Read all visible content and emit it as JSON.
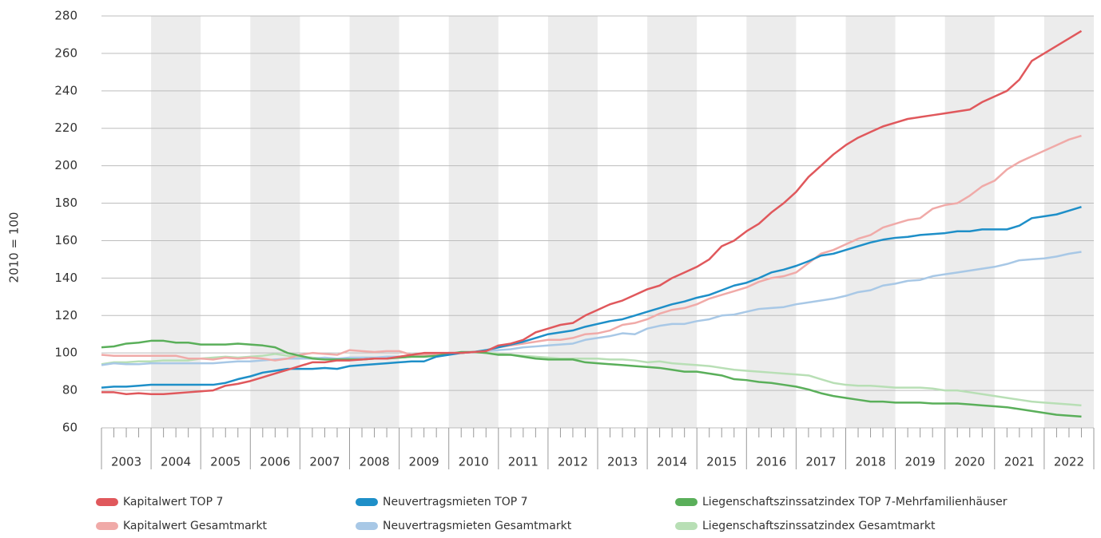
{
  "chart_data": {
    "type": "line",
    "y_label": "2010 = 100",
    "x": [
      2003,
      2003.25,
      2003.5,
      2003.75,
      2004,
      2004.25,
      2004.5,
      2004.75,
      2005,
      2005.25,
      2005.5,
      2005.75,
      2006,
      2006.25,
      2006.5,
      2006.75,
      2007,
      2007.25,
      2007.5,
      2007.75,
      2008,
      2008.25,
      2008.5,
      2008.75,
      2009,
      2009.25,
      2009.5,
      2009.75,
      2010,
      2010.25,
      2010.5,
      2010.75,
      2011,
      2011.25,
      2011.5,
      2011.75,
      2012,
      2012.25,
      2012.5,
      2012.75,
      2013,
      2013.25,
      2013.5,
      2013.75,
      2014,
      2014.25,
      2014.5,
      2014.75,
      2015,
      2015.25,
      2015.5,
      2015.75,
      2016,
      2016.25,
      2016.5,
      2016.75,
      2017,
      2017.25,
      2017.5,
      2017.75,
      2018,
      2018.25,
      2018.5,
      2018.75,
      2019,
      2019.25,
      2019.5,
      2019.75,
      2020,
      2020.25,
      2020.5,
      2020.75,
      2021,
      2021.25,
      2021.5,
      2021.75,
      2022,
      2022.25,
      2022.5,
      2022.75
    ],
    "xlim": [
      2003,
      2023
    ],
    "xticks": [
      2003,
      2004,
      2005,
      2006,
      2007,
      2008,
      2009,
      2010,
      2011,
      2012,
      2013,
      2014,
      2015,
      2016,
      2017,
      2018,
      2019,
      2020,
      2021,
      2022
    ],
    "ylim": [
      60,
      280
    ],
    "yticks": [
      60,
      80,
      100,
      120,
      140,
      160,
      180,
      200,
      220,
      240,
      260,
      280
    ],
    "grid": true,
    "series": [
      {
        "name": "Kapitalwert TOP 7",
        "color": "#e0585c",
        "values": [
          79,
          79,
          78,
          78.5,
          78,
          78,
          78.5,
          79,
          79.5,
          80,
          82.5,
          83.5,
          85,
          87,
          89,
          91,
          93,
          95,
          95,
          96,
          96,
          96.5,
          97,
          97,
          98,
          99,
          100,
          100,
          100,
          100,
          100.5,
          101,
          104,
          105,
          107,
          111,
          113,
          115,
          116,
          120,
          123,
          126,
          128,
          131,
          134,
          136,
          140,
          143,
          146,
          150,
          157,
          160,
          165,
          169,
          175,
          180,
          186,
          194,
          200,
          206,
          211,
          215,
          218,
          221,
          223,
          225,
          226,
          227,
          228,
          229,
          230,
          234,
          237,
          240,
          246,
          256,
          260,
          264,
          268,
          272
        ]
      },
      {
        "name": "Kapitalwert Gesamtmarkt",
        "color": "#f0aaa8",
        "values": [
          99,
          98.5,
          98.5,
          98.5,
          98.5,
          98.5,
          98.5,
          97,
          97,
          96.5,
          97.5,
          97,
          97.5,
          97,
          96,
          97,
          99,
          100,
          99.5,
          99,
          101.5,
          101,
          100.5,
          101,
          101,
          99,
          99,
          99.5,
          100,
          100,
          100.5,
          101,
          103,
          104,
          105,
          106,
          107,
          107,
          108,
          110,
          110.5,
          112,
          115,
          116,
          118,
          121,
          123,
          124,
          126,
          129,
          131,
          133,
          135,
          138,
          140,
          141,
          143,
          148,
          153,
          155,
          158,
          161,
          163,
          167,
          169,
          171,
          172,
          177,
          179,
          180,
          184,
          189,
          192,
          198,
          202,
          205,
          208,
          211,
          214,
          216
        ]
      },
      {
        "name": "Neuvertragsmieten TOP 7",
        "color": "#1e8fc8",
        "values": [
          81.5,
          82,
          82,
          82.5,
          83,
          83,
          83,
          83,
          83,
          83,
          84,
          86,
          87.5,
          89.5,
          90.5,
          91.5,
          91.5,
          91.5,
          92,
          91.5,
          93,
          93.5,
          94,
          94.5,
          95,
          95.5,
          95.5,
          98,
          99,
          100,
          100.5,
          101.5,
          103,
          104.5,
          106,
          108,
          110,
          111,
          112,
          114,
          115.5,
          117,
          118,
          120,
          122,
          124,
          126,
          127.5,
          129.5,
          131,
          133.5,
          136,
          137.5,
          140,
          143,
          144.5,
          146.5,
          149,
          152,
          153,
          155,
          157,
          159,
          160.5,
          161.5,
          162,
          163,
          163.5,
          164,
          165,
          165,
          166,
          166,
          166,
          168,
          172,
          173,
          174,
          176,
          178
        ]
      },
      {
        "name": "Neuvertragsmieten Gesamtmarkt",
        "color": "#a8c8e6",
        "values": [
          93.5,
          94.5,
          94,
          94,
          94.5,
          94.5,
          94.5,
          94.5,
          94.5,
          94.5,
          95,
          95.5,
          95.5,
          96,
          96.5,
          97,
          97,
          97,
          97.5,
          97,
          97.5,
          97.5,
          97.5,
          98,
          98,
          98.5,
          99,
          99.5,
          100,
          100,
          100.5,
          101,
          101.5,
          102,
          103,
          103.5,
          104,
          104.5,
          105,
          107,
          108,
          109,
          110.5,
          110,
          113,
          114.5,
          115.5,
          115.5,
          117,
          118,
          120,
          120.5,
          122,
          123.5,
          124,
          124.5,
          126,
          127,
          128,
          129,
          130.5,
          132.5,
          133.5,
          136,
          137,
          138.5,
          139,
          141,
          142,
          143,
          144,
          145,
          146,
          147.5,
          149.5,
          150,
          150.5,
          151.5,
          153,
          154
        ]
      },
      {
        "name": "Liegenschaftszinssatzindex TOP 7-Mehrfamilienhäuser",
        "color": "#5aaf5a",
        "values": [
          103,
          103.5,
          105,
          105.5,
          106.5,
          106.5,
          105.5,
          105.5,
          104.5,
          104.5,
          104.5,
          105,
          104.5,
          104,
          103,
          100,
          98.5,
          97,
          96.5,
          96.5,
          96.5,
          96.5,
          97,
          97,
          97.5,
          98,
          98,
          98.5,
          99.5,
          100.5,
          100.5,
          100,
          99,
          99,
          98,
          97,
          96.5,
          96.5,
          96.5,
          95,
          94.5,
          94,
          93.5,
          93,
          92.5,
          92,
          91,
          90,
          90,
          89,
          88,
          86,
          85.5,
          84.5,
          84,
          83,
          82,
          80.5,
          78.5,
          77,
          76,
          75,
          74,
          74,
          73.5,
          73.5,
          73.5,
          73,
          73,
          73,
          72.5,
          72,
          71.5,
          71,
          70,
          69,
          68,
          67,
          66.5,
          66
        ]
      },
      {
        "name": "Liegenschaftszinssatzindex Gesamtmarkt",
        "color": "#b8dfb5",
        "values": [
          94,
          95,
          95,
          95.5,
          95.5,
          96,
          96,
          96,
          97,
          97.5,
          98,
          97.5,
          98,
          98.5,
          99.5,
          98.5,
          98,
          97.5,
          97,
          97,
          97,
          97.5,
          97.5,
          97.5,
          97.5,
          98,
          98,
          99,
          100,
          100,
          100.5,
          100,
          99.5,
          99,
          98.5,
          98,
          97.5,
          97,
          97,
          97,
          97,
          96.5,
          96.5,
          96,
          95,
          95.5,
          94.5,
          94,
          93.5,
          93,
          92,
          91,
          90.5,
          90,
          89.5,
          89,
          88.5,
          88,
          86,
          84,
          83,
          82.5,
          82.5,
          82,
          81.5,
          81.5,
          81.5,
          81,
          80,
          80,
          79,
          78,
          77,
          76,
          75,
          74,
          73.5,
          73,
          72.5,
          72
        ]
      }
    ]
  }
}
